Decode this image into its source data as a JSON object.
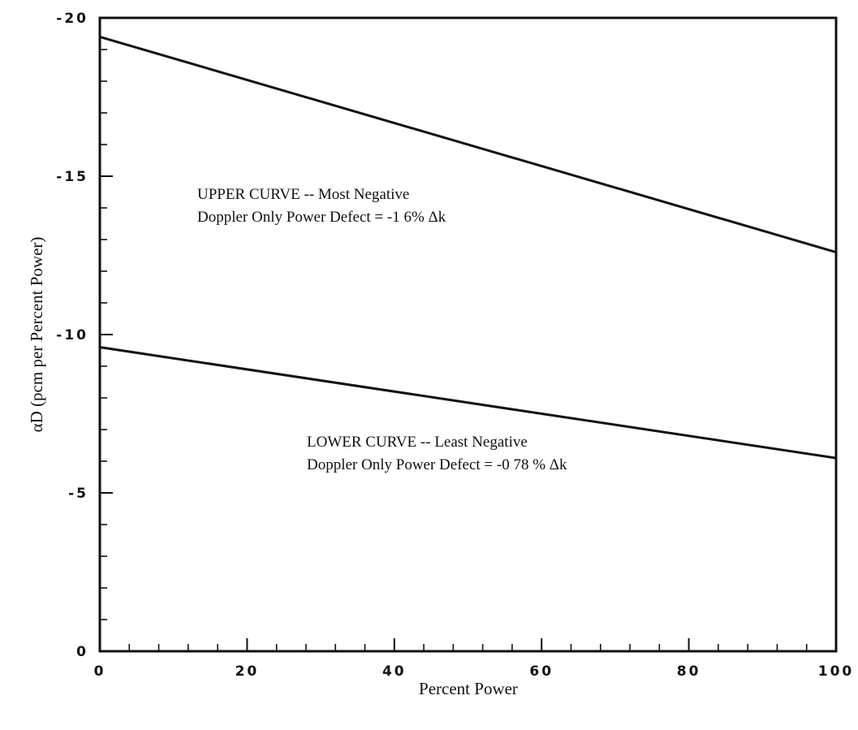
{
  "chart_data": {
    "type": "line",
    "xlabel": "Percent Power",
    "ylabel": "αD (pcm per Percent Power)",
    "xlim": [
      0,
      100
    ],
    "ylim": [
      0,
      -20
    ],
    "x_ticks": [
      0,
      20,
      40,
      60,
      80,
      100
    ],
    "x_tick_labels": [
      "0",
      "20",
      "40",
      "60",
      "80",
      "100"
    ],
    "y_ticks": [
      0,
      -5,
      -10,
      -15,
      -20
    ],
    "y_tick_labels": [
      "0",
      "-5",
      "-10",
      "-15",
      "-20"
    ],
    "grid": false,
    "series": [
      {
        "x": [
          0,
          100
        ],
        "values": [
          -19.4,
          -12.6
        ]
      },
      {
        "x": [
          0,
          100
        ],
        "values": [
          -9.6,
          -6.1
        ]
      }
    ],
    "annotations": [
      {
        "line1": "UPPER CURVE -- Most Negative",
        "line2": "Doppler Only Power Defect = -1 6% Δk"
      },
      {
        "line1": "LOWER CURVE -- Least Negative",
        "line2": "Doppler Only Power Defect = -0 78 % Δk"
      }
    ]
  }
}
